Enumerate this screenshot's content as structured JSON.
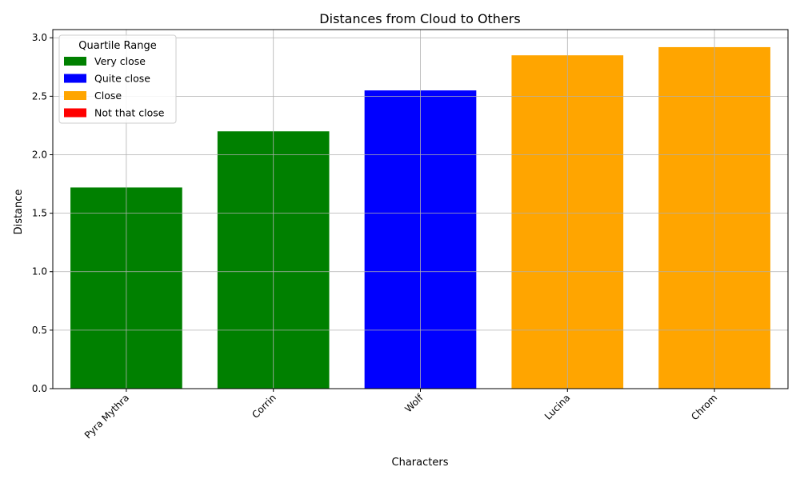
{
  "chart_data": {
    "type": "bar",
    "title": "Distances from Cloud to Others",
    "xlabel": "Characters",
    "ylabel": "Distance",
    "categories": [
      "Pyra Mythra",
      "Corrin",
      "Wolf",
      "Lucina",
      "Chrom"
    ],
    "values": [
      1.72,
      2.2,
      2.55,
      2.85,
      2.92
    ],
    "bar_groups": [
      "Very close",
      "Very close",
      "Quite close",
      "Close",
      "Close"
    ],
    "ylim": [
      0,
      3.07
    ],
    "yticks": [
      0.0,
      0.5,
      1.0,
      1.5,
      2.0,
      2.5,
      3.0
    ],
    "ytick_labels": [
      "0.0",
      "0.5",
      "1.0",
      "1.5",
      "2.0",
      "2.5",
      "3.0"
    ],
    "grid": true,
    "legend": {
      "title": "Quartile Range",
      "placement": "top-left",
      "entries": [
        {
          "label": "Very close",
          "color": "#008000"
        },
        {
          "label": "Quite close",
          "color": "#0000ff"
        },
        {
          "label": "Close",
          "color": "#ffa500"
        },
        {
          "label": "Not that close",
          "color": "#ff0000"
        }
      ]
    }
  }
}
